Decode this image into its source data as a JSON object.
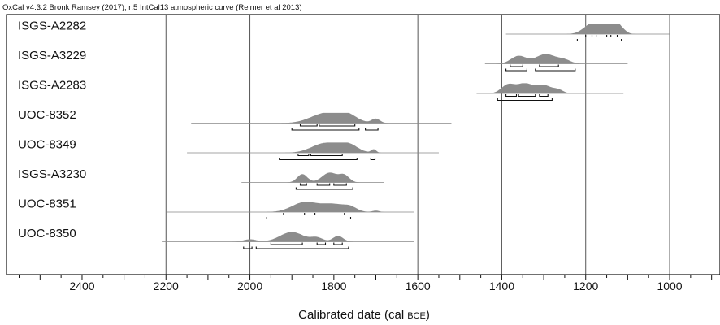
{
  "header": "OxCal v4.3.2 Bronk Ramsey (2017); r:5 IntCal13 atmospheric curve (Reimer et al 2013)",
  "chart_data": {
    "type": "area",
    "xlabel": "Calibrated date (cal",
    "xlabel_unit": "BCE",
    "xlabel_close": ")",
    "xlim": [
      2580,
      880
    ],
    "x_reversed": true,
    "x_ticks": [
      2400,
      2200,
      2000,
      1800,
      1600,
      1400,
      1200,
      1000
    ],
    "x_tick_labels": [
      "2400",
      "2200",
      "2000",
      "1800",
      "1600",
      "1400",
      "1200",
      "1000"
    ],
    "grid_lines": [
      2200,
      2000,
      1600,
      1400,
      1200,
      1000
    ],
    "colors": {
      "distribution": "#8c8c8c",
      "range_line": "#888888",
      "bracket": "#111111",
      "grid": "#555555"
    },
    "samples": [
      {
        "label": "ISGS-A2282",
        "line": [
          1390,
          1000
        ],
        "peaks": [
          {
            "c": 1185,
            "w": 20,
            "h": 1
          },
          {
            "c": 1150,
            "w": 20,
            "h": 0.85
          },
          {
            "c": 1130,
            "w": 14,
            "h": 0.9
          },
          {
            "c": 1110,
            "w": 10,
            "h": 0.15
          }
        ],
        "bracket_sets": [
          [
            [
              1200,
              1185
            ],
            [
              1175,
              1150
            ],
            [
              1140,
              1125
            ]
          ],
          [
            [
              1220,
              1115
            ]
          ]
        ]
      },
      {
        "label": "ISGS-A3229",
        "line": [
          1440,
          1100
        ],
        "peaks": [
          {
            "c": 1360,
            "w": 18,
            "h": 0.8
          },
          {
            "c": 1295,
            "w": 24,
            "h": 1
          },
          {
            "c": 1250,
            "w": 15,
            "h": 0.35
          }
        ],
        "bracket_sets": [
          [
            [
              1380,
              1350
            ],
            [
              1310,
              1265
            ]
          ],
          [
            [
              1390,
              1340
            ],
            [
              1320,
              1225
            ]
          ]
        ]
      },
      {
        "label": "ISGS-A2283",
        "line": [
          1460,
          1110
        ],
        "peaks": [
          {
            "c": 1385,
            "w": 16,
            "h": 0.9
          },
          {
            "c": 1345,
            "w": 18,
            "h": 1
          },
          {
            "c": 1300,
            "w": 18,
            "h": 0.85
          },
          {
            "c": 1265,
            "w": 12,
            "h": 0.35
          }
        ],
        "bracket_sets": [
          [
            [
              1390,
              1365
            ],
            [
              1360,
              1320
            ],
            [
              1310,
              1290
            ]
          ],
          [
            [
              1410,
              1280
            ]
          ]
        ]
      },
      {
        "label": "UOC-8352",
        "line": [
          2140,
          1520
        ],
        "peaks": [
          {
            "c": 1820,
            "w": 35,
            "h": 1
          },
          {
            "c": 1770,
            "w": 25,
            "h": 0.8
          },
          {
            "c": 1700,
            "w": 10,
            "h": 0.45
          }
        ],
        "bracket_sets": [
          [
            [
              1880,
              1840
            ],
            [
              1835,
              1750
            ]
          ],
          [
            [
              1900,
              1740
            ],
            [
              1725,
              1695
            ]
          ]
        ]
      },
      {
        "label": "UOC-8349",
        "line": [
          2150,
          1550
        ],
        "peaks": [
          {
            "c": 1820,
            "w": 32,
            "h": 1
          },
          {
            "c": 1765,
            "w": 22,
            "h": 0.8
          },
          {
            "c": 1705,
            "w": 6,
            "h": 0.35
          }
        ],
        "bracket_sets": [
          [
            [
              1885,
              1860
            ],
            [
              1855,
              1780
            ]
          ],
          [
            [
              1930,
              1745
            ],
            [
              1712,
              1702
            ]
          ]
        ]
      },
      {
        "label": "ISGS-A3230",
        "line": [
          2020,
          1680
        ],
        "peaks": [
          {
            "c": 1875,
            "w": 12,
            "h": 0.85
          },
          {
            "c": 1810,
            "w": 18,
            "h": 1
          },
          {
            "c": 1775,
            "w": 12,
            "h": 0.7
          }
        ],
        "bracket_sets": [
          [
            [
              1880,
              1865
            ],
            [
              1840,
              1810
            ],
            [
              1800,
              1770
            ]
          ],
          [
            [
              1890,
              1755
            ]
          ]
        ]
      },
      {
        "label": "UOC-8351",
        "line": [
          2200,
          1610
        ],
        "peaks": [
          {
            "c": 1870,
            "w": 30,
            "h": 1
          },
          {
            "c": 1800,
            "w": 30,
            "h": 0.8
          },
          {
            "c": 1760,
            "w": 15,
            "h": 0.35
          },
          {
            "c": 1700,
            "w": 8,
            "h": 0.15
          }
        ],
        "bracket_sets": [
          [
            [
              1920,
              1870
            ],
            [
              1845,
              1775
            ]
          ],
          [
            [
              1960,
              1760
            ]
          ]
        ]
      },
      {
        "label": "UOC-8350",
        "line": [
          2210,
          1610
        ],
        "peaks": [
          {
            "c": 2000,
            "w": 15,
            "h": 0.25
          },
          {
            "c": 1900,
            "w": 28,
            "h": 1
          },
          {
            "c": 1840,
            "w": 14,
            "h": 0.4
          },
          {
            "c": 1790,
            "w": 12,
            "h": 0.6
          }
        ],
        "bracket_sets": [
          [
            [
              1950,
              1875
            ],
            [
              1840,
              1820
            ],
            [
              1800,
              1780
            ]
          ],
          [
            [
              2015,
              1995
            ],
            [
              1985,
              1765
            ]
          ]
        ]
      }
    ]
  }
}
